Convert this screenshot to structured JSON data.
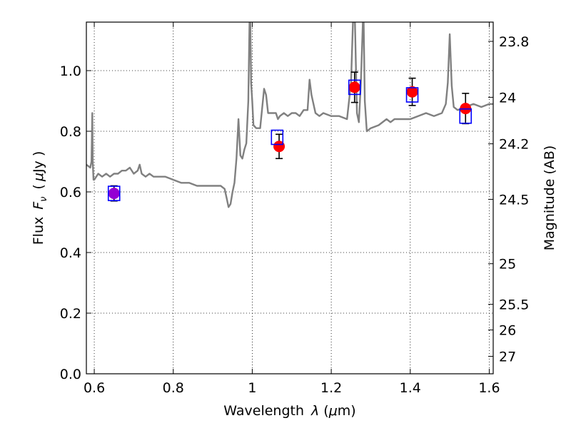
{
  "chart_data": {
    "type": "scatter",
    "xlabel_text": "Wavelength",
    "xlabel_symbol": "λ",
    "xlabel_unit_open": "(",
    "xlabel_unit_mu": "μ",
    "xlabel_unit_rest": "m)",
    "ylabel_text": "Flux",
    "ylabel_symbol": "F",
    "ylabel_sub": "ν",
    "ylabel_unit_open": "(",
    "ylabel_unit_mu": "μ",
    "ylabel_unit_rest": "Jy )",
    "y2label": "Magnitude (AB)",
    "xlim": [
      0.58,
      1.61
    ],
    "ylim": [
      0.0,
      1.16
    ],
    "grid": true,
    "x_ticks": [
      {
        "v": 0.6,
        "label": "0.6"
      },
      {
        "v": 0.8,
        "label": "0.8"
      },
      {
        "v": 1.0,
        "label": "1"
      },
      {
        "v": 1.2,
        "label": "1.2"
      },
      {
        "v": 1.4,
        "label": "1.4"
      },
      {
        "v": 1.6,
        "label": "1.6"
      }
    ],
    "y_ticks": [
      {
        "v": 0.0,
        "label": "0.0"
      },
      {
        "v": 0.2,
        "label": "0.2"
      },
      {
        "v": 0.4,
        "label": "0.4"
      },
      {
        "v": 0.6,
        "label": "0.6"
      },
      {
        "v": 0.8,
        "label": "0.8"
      },
      {
        "v": 1.0,
        "label": "1.0"
      }
    ],
    "y2_ticks": [
      {
        "mag": 23.8,
        "label": "23.8"
      },
      {
        "mag": 24.0,
        "label": "24"
      },
      {
        "mag": 24.2,
        "label": "24.2"
      },
      {
        "mag": 24.5,
        "label": "24.5"
      },
      {
        "mag": 25.0,
        "label": "25"
      },
      {
        "mag": 25.5,
        "label": "25.5"
      },
      {
        "mag": 26.0,
        "label": "26"
      },
      {
        "mag": 27.0,
        "label": "27"
      }
    ],
    "model_spectrum": {
      "color": "#808080",
      "x": [
        0.58,
        0.59,
        0.593,
        0.595,
        0.596,
        0.598,
        0.6,
        0.61,
        0.62,
        0.63,
        0.64,
        0.65,
        0.66,
        0.67,
        0.68,
        0.69,
        0.7,
        0.71,
        0.715,
        0.72,
        0.73,
        0.74,
        0.75,
        0.76,
        0.78,
        0.8,
        0.82,
        0.84,
        0.86,
        0.88,
        0.9,
        0.92,
        0.93,
        0.935,
        0.94,
        0.945,
        0.95,
        0.955,
        0.96,
        0.965,
        0.97,
        0.975,
        0.98,
        0.985,
        0.99,
        0.993,
        0.995,
        0.997,
        1.0,
        1.003,
        1.01,
        1.02,
        1.03,
        1.035,
        1.04,
        1.05,
        1.06,
        1.065,
        1.07,
        1.08,
        1.09,
        1.1,
        1.11,
        1.12,
        1.13,
        1.14,
        1.145,
        1.15,
        1.16,
        1.17,
        1.18,
        1.2,
        1.22,
        1.24,
        1.25,
        1.255,
        1.26,
        1.265,
        1.27,
        1.275,
        1.28,
        1.282,
        1.285,
        1.29,
        1.3,
        1.32,
        1.34,
        1.35,
        1.36,
        1.38,
        1.4,
        1.42,
        1.44,
        1.46,
        1.48,
        1.49,
        1.495,
        1.5,
        1.505,
        1.51,
        1.52,
        1.54,
        1.56,
        1.58,
        1.6,
        1.61
      ],
      "y": [
        0.69,
        0.68,
        0.7,
        0.86,
        0.7,
        0.64,
        0.64,
        0.66,
        0.65,
        0.66,
        0.65,
        0.66,
        0.66,
        0.67,
        0.67,
        0.68,
        0.66,
        0.67,
        0.69,
        0.66,
        0.65,
        0.66,
        0.65,
        0.65,
        0.65,
        0.64,
        0.63,
        0.63,
        0.62,
        0.62,
        0.62,
        0.62,
        0.61,
        0.58,
        0.55,
        0.56,
        0.6,
        0.63,
        0.71,
        0.84,
        0.72,
        0.71,
        0.74,
        0.76,
        0.9,
        1.16,
        1.16,
        0.96,
        0.9,
        0.82,
        0.81,
        0.81,
        0.94,
        0.92,
        0.86,
        0.86,
        0.86,
        0.84,
        0.85,
        0.86,
        0.85,
        0.86,
        0.86,
        0.85,
        0.87,
        0.87,
        0.97,
        0.92,
        0.86,
        0.85,
        0.86,
        0.85,
        0.85,
        0.84,
        0.96,
        1.16,
        1.16,
        0.86,
        0.83,
        0.96,
        1.16,
        1.16,
        0.9,
        0.8,
        0.81,
        0.82,
        0.84,
        0.83,
        0.84,
        0.84,
        0.84,
        0.85,
        0.86,
        0.85,
        0.86,
        0.89,
        0.96,
        1.12,
        0.95,
        0.88,
        0.87,
        0.88,
        0.89,
        0.88,
        0.89,
        0.89
      ]
    },
    "model_photometry": {
      "marker": "open-square",
      "color": "#0000ff",
      "x": [
        0.65,
        1.063,
        1.259,
        1.405,
        1.54
      ],
      "y": [
        0.595,
        0.78,
        0.945,
        0.92,
        0.85
      ]
    },
    "observed": {
      "marker": "filled-circle",
      "color": "#ff0000",
      "x": [
        0.65,
        1.068,
        1.259,
        1.405,
        1.54
      ],
      "y": [
        0.595,
        0.75,
        0.945,
        0.93,
        0.875
      ],
      "yerr": [
        0.025,
        0.04,
        0.05,
        0.045,
        0.05
      ]
    },
    "special_point_color": "#9400d3"
  }
}
